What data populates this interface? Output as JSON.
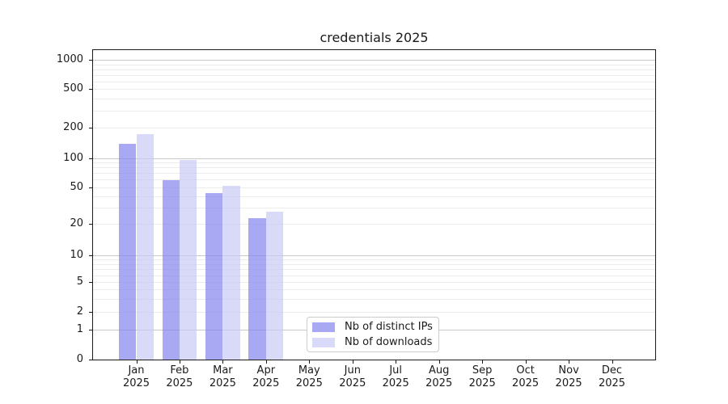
{
  "chart_data": {
    "type": "bar",
    "title": "credentials 2025",
    "year_label": "2025",
    "month_labels": [
      "Jan",
      "Feb",
      "Mar",
      "Apr",
      "May",
      "Jun",
      "Jul",
      "Aug",
      "Sep",
      "Oct",
      "Nov",
      "Dec"
    ],
    "categories": [
      "Jan 2025",
      "Feb 2025",
      "Mar 2025",
      "Apr 2025",
      "May 2025",
      "Jun 2025",
      "Jul 2025",
      "Aug 2025",
      "Sep 2025",
      "Oct 2025",
      "Nov 2025",
      "Dec 2025"
    ],
    "series": [
      {
        "name": "Nb of distinct IPs",
        "color": "#8484ee",
        "fill_alpha": 0.7,
        "values": [
          140,
          59,
          43,
          23,
          0,
          0,
          0,
          0,
          0,
          0,
          0,
          0
        ]
      },
      {
        "name": "Nb of downloads",
        "color": "#c9c9f5",
        "fill_alpha": 0.7,
        "values": [
          173,
          96,
          52,
          27,
          0,
          0,
          0,
          0,
          0,
          0,
          0,
          0
        ]
      }
    ],
    "yscale": "symlog",
    "yticks": [
      0,
      1,
      2,
      5,
      10,
      20,
      50,
      100,
      200,
      500,
      1000
    ],
    "ylim": [
      0,
      1400
    ],
    "grid": true,
    "legend": {
      "position": "lower center",
      "labels": [
        "Nb of distinct IPs",
        "Nb of downloads"
      ]
    }
  }
}
